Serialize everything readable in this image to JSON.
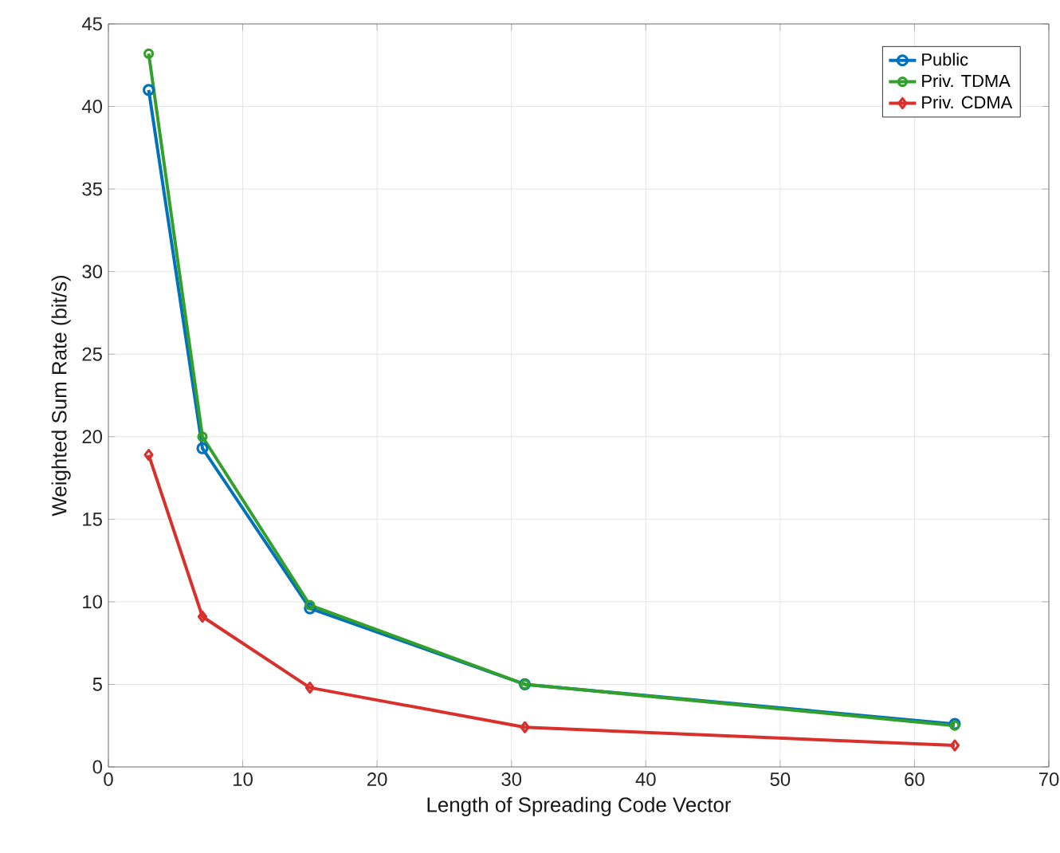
{
  "chart_data": {
    "type": "line",
    "xlabel": "Length of Spreading Code Vector",
    "ylabel": "Weighted Sum Rate (bit/s)",
    "x": [
      3,
      7,
      15,
      31,
      63
    ],
    "series": [
      {
        "name": "Public",
        "color": "#0072bd",
        "values": [
          41.0,
          19.3,
          9.6,
          5.0,
          2.6
        ],
        "marker": "circle"
      },
      {
        "name": "Priv. TDMA",
        "color": "#33a02c",
        "values": [
          43.2,
          20.0,
          9.8,
          5.0,
          2.5
        ],
        "marker": "circle"
      },
      {
        "name": "Priv. CDMA",
        "color": "#d9302c",
        "values": [
          18.9,
          9.1,
          4.8,
          2.4,
          1.3
        ],
        "marker": "diamond"
      }
    ],
    "xlim": [
      0,
      70
    ],
    "xticks": [
      0,
      10,
      20,
      30,
      40,
      50,
      60,
      70
    ],
    "ylim": [
      0,
      45
    ],
    "yticks": [
      0,
      5,
      10,
      15,
      20,
      25,
      30,
      35,
      40,
      45
    ],
    "grid": true,
    "legend": "top right",
    "line_style": "solid"
  }
}
